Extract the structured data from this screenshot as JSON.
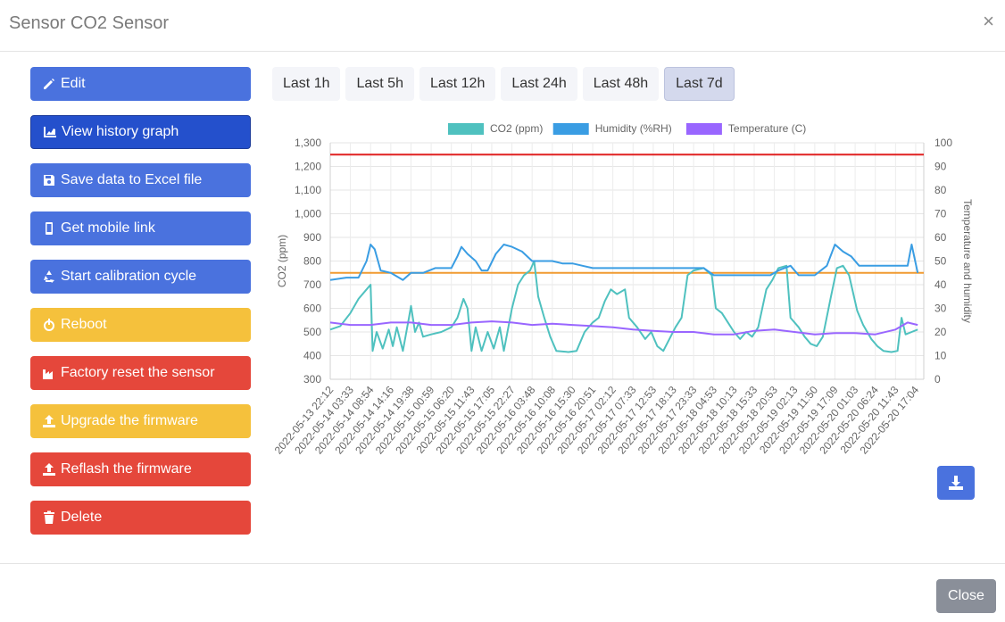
{
  "modal": {
    "title": "Sensor CO2 Sensor",
    "close_symbol": "×"
  },
  "actions": [
    {
      "label": "Edit",
      "icon": "pencil-icon",
      "color": "#4a72de",
      "name": "edit-button"
    },
    {
      "label": "View history graph",
      "icon": "chart-icon",
      "color": "#2450cc",
      "name": "view-history-graph-button",
      "active": true
    },
    {
      "label": "Save data to Excel file",
      "icon": "floppy-icon",
      "color": "#4a72de",
      "name": "save-excel-button"
    },
    {
      "label": "Get mobile link",
      "icon": "mobile-icon",
      "color": "#4a72de",
      "name": "get-mobile-link-button"
    },
    {
      "label": "Start calibration cycle",
      "icon": "recycle-icon",
      "color": "#4a72de",
      "name": "start-calibration-button"
    },
    {
      "label": "Reboot",
      "icon": "power-icon",
      "color": "#f5c13c",
      "name": "reboot-button"
    },
    {
      "label": "Factory reset the sensor",
      "icon": "factory-icon",
      "color": "#e5473b",
      "name": "factory-reset-button"
    },
    {
      "label": "Upgrade the firmware",
      "icon": "upload-icon",
      "color": "#f5c13c",
      "name": "upgrade-firmware-button"
    },
    {
      "label": "Reflash the firmware",
      "icon": "upload-icon",
      "color": "#e5473b",
      "name": "reflash-firmware-button"
    },
    {
      "label": "Delete",
      "icon": "trash-icon",
      "color": "#e5473b",
      "name": "delete-button"
    }
  ],
  "ranges": [
    {
      "label": "Last 1h"
    },
    {
      "label": "Last 5h"
    },
    {
      "label": "Last 12h"
    },
    {
      "label": "Last 24h"
    },
    {
      "label": "Last 48h"
    },
    {
      "label": "Last 7d",
      "active": true
    }
  ],
  "download_icon": "download-icon",
  "footer": {
    "close_label": "Close"
  },
  "chart_data": {
    "type": "line",
    "title": "",
    "legend": [
      {
        "name": "CO2 (ppm)",
        "color": "#4fc1bf"
      },
      {
        "name": "Humidity (%RH)",
        "color": "#3a9de3"
      },
      {
        "name": "Temperature (C)",
        "color": "#9966ff"
      }
    ],
    "legend_position": "top",
    "ylabel_left": "CO2 (ppm)",
    "ylabel_right": "Temperature and humidity",
    "ylim_left": [
      300,
      1300
    ],
    "ylim_right": [
      0,
      100
    ],
    "yticks_left": [
      "300",
      "400",
      "500",
      "600",
      "700",
      "800",
      "900",
      "1,000",
      "1,100",
      "1,200",
      "1,300"
    ],
    "yticks_right": [
      "0",
      "10",
      "20",
      "30",
      "40",
      "50",
      "60",
      "70",
      "80",
      "90",
      "100"
    ],
    "grid": true,
    "x_labels": [
      "2022-05-13 22:12",
      "2022-05-14 03:33",
      "2022-05-14 08:54",
      "2022-05-14 14:16",
      "2022-05-14 19:38",
      "2022-05-15 00:59",
      "2022-05-15 06:20",
      "2022-05-15 11:43",
      "2022-05-15 17:05",
      "2022-05-15 22:27",
      "2022-05-16 03:48",
      "2022-05-16 10:08",
      "2022-05-16 15:30",
      "2022-05-16 20:51",
      "2022-05-17 02:12",
      "2022-05-17 07:33",
      "2022-05-17 12:53",
      "2022-05-17 18:13",
      "2022-05-17 23:33",
      "2022-05-18 04:53",
      "2022-05-18 10:13",
      "2022-05-18 15:33",
      "2022-05-18 20:53",
      "2022-05-19 02:13",
      "2022-05-19 11:50",
      "2022-05-19 17:09",
      "2022-05-20 01:03",
      "2022-05-20 06:24",
      "2022-05-20 11:43",
      "2022-05-20 17:04"
    ],
    "thresholds_left": [
      {
        "value": 1250,
        "color": "#e02020"
      },
      {
        "value": 750,
        "color": "#f09a30"
      }
    ],
    "series": [
      {
        "name": "CO2 (ppm)",
        "axis": "left",
        "color": "#4fc1bf",
        "points": [
          [
            0,
            510
          ],
          [
            0.5,
            525
          ],
          [
            1,
            580
          ],
          [
            1.4,
            640
          ],
          [
            1.8,
            680
          ],
          [
            2,
            700
          ],
          [
            2.1,
            420
          ],
          [
            2.3,
            500
          ],
          [
            2.6,
            430
          ],
          [
            2.9,
            510
          ],
          [
            3.1,
            440
          ],
          [
            3.3,
            520
          ],
          [
            3.6,
            420
          ],
          [
            3.9,
            560
          ],
          [
            4,
            610
          ],
          [
            4.2,
            500
          ],
          [
            4.4,
            540
          ],
          [
            4.6,
            480
          ],
          [
            5,
            490
          ],
          [
            5.5,
            500
          ],
          [
            6,
            520
          ],
          [
            6.3,
            560
          ],
          [
            6.6,
            640
          ],
          [
            6.8,
            600
          ],
          [
            7,
            420
          ],
          [
            7.2,
            520
          ],
          [
            7.5,
            420
          ],
          [
            7.8,
            500
          ],
          [
            8.1,
            430
          ],
          [
            8.4,
            520
          ],
          [
            8.6,
            420
          ],
          [
            9,
            600
          ],
          [
            9.3,
            700
          ],
          [
            9.6,
            740
          ],
          [
            9.9,
            760
          ],
          [
            10.1,
            800
          ],
          [
            10.3,
            650
          ],
          [
            10.6,
            560
          ],
          [
            10.9,
            480
          ],
          [
            11.2,
            420
          ],
          [
            11.8,
            415
          ],
          [
            12.2,
            420
          ],
          [
            12.6,
            500
          ],
          [
            13,
            540
          ],
          [
            13.3,
            560
          ],
          [
            13.6,
            630
          ],
          [
            13.9,
            680
          ],
          [
            14.2,
            660
          ],
          [
            14.6,
            680
          ],
          [
            14.8,
            560
          ],
          [
            15.2,
            520
          ],
          [
            15.6,
            470
          ],
          [
            15.9,
            500
          ],
          [
            16.2,
            440
          ],
          [
            16.5,
            420
          ],
          [
            16.8,
            470
          ],
          [
            17.1,
            520
          ],
          [
            17.4,
            560
          ],
          [
            17.7,
            740
          ],
          [
            18.0,
            760
          ],
          [
            18.5,
            770
          ],
          [
            18.9,
            740
          ],
          [
            19.1,
            600
          ],
          [
            19.4,
            580
          ],
          [
            19.7,
            540
          ],
          [
            20,
            500
          ],
          [
            20.3,
            470
          ],
          [
            20.6,
            500
          ],
          [
            20.9,
            480
          ],
          [
            21.2,
            520
          ],
          [
            21.6,
            680
          ],
          [
            21.9,
            720
          ],
          [
            22.2,
            770
          ],
          [
            22.6,
            780
          ],
          [
            22.8,
            560
          ],
          [
            23.2,
            520
          ],
          [
            23.5,
            480
          ],
          [
            23.8,
            450
          ],
          [
            24.1,
            440
          ],
          [
            24.4,
            480
          ],
          [
            24.8,
            650
          ],
          [
            25.1,
            770
          ],
          [
            25.4,
            780
          ],
          [
            25.7,
            740
          ],
          [
            26.1,
            590
          ],
          [
            26.4,
            530
          ],
          [
            26.8,
            470
          ],
          [
            27.1,
            440
          ],
          [
            27.4,
            420
          ],
          [
            27.8,
            415
          ],
          [
            28.1,
            420
          ],
          [
            28.3,
            560
          ],
          [
            28.5,
            490
          ],
          [
            28.8,
            500
          ],
          [
            29.1,
            510
          ]
        ]
      },
      {
        "name": "Humidity (%RH)",
        "axis": "right",
        "color": "#3a9de3",
        "points": [
          [
            0,
            42
          ],
          [
            0.8,
            43
          ],
          [
            1.4,
            43
          ],
          [
            1.8,
            50
          ],
          [
            2,
            57
          ],
          [
            2.2,
            55
          ],
          [
            2.5,
            46
          ],
          [
            3.0,
            45
          ],
          [
            3.6,
            42
          ],
          [
            4,
            45
          ],
          [
            4.6,
            45
          ],
          [
            5.2,
            47
          ],
          [
            6,
            47
          ],
          [
            6.3,
            52
          ],
          [
            6.5,
            56
          ],
          [
            6.8,
            53
          ],
          [
            7.2,
            50
          ],
          [
            7.5,
            46
          ],
          [
            7.8,
            46
          ],
          [
            8.2,
            53
          ],
          [
            8.6,
            57
          ],
          [
            9,
            56
          ],
          [
            9.5,
            54
          ],
          [
            10,
            50
          ],
          [
            10.5,
            50
          ],
          [
            11,
            50
          ],
          [
            11.5,
            49
          ],
          [
            12,
            49
          ],
          [
            12.5,
            48
          ],
          [
            13,
            47
          ],
          [
            14,
            47
          ],
          [
            15,
            47
          ],
          [
            16,
            47
          ],
          [
            17,
            47
          ],
          [
            18,
            47
          ],
          [
            18.5,
            47
          ],
          [
            19,
            44
          ],
          [
            20,
            44
          ],
          [
            21,
            44
          ],
          [
            21.8,
            44
          ],
          [
            22.2,
            46
          ],
          [
            22.8,
            48
          ],
          [
            23.2,
            44
          ],
          [
            24,
            44
          ],
          [
            24.6,
            48
          ],
          [
            25,
            57
          ],
          [
            25.4,
            54
          ],
          [
            25.8,
            52
          ],
          [
            26.2,
            48
          ],
          [
            26.6,
            48
          ],
          [
            27.2,
            48
          ],
          [
            28,
            48
          ],
          [
            28.6,
            48
          ],
          [
            28.8,
            57
          ],
          [
            29.1,
            45
          ]
        ]
      },
      {
        "name": "Temperature (C)",
        "axis": "right",
        "color": "#9966ff",
        "points": [
          [
            0,
            24
          ],
          [
            1,
            23
          ],
          [
            2,
            23
          ],
          [
            3,
            24
          ],
          [
            4,
            24
          ],
          [
            5,
            23
          ],
          [
            6,
            23
          ],
          [
            7,
            24
          ],
          [
            8,
            24.5
          ],
          [
            9,
            24
          ],
          [
            10,
            23
          ],
          [
            11,
            23.5
          ],
          [
            12,
            23
          ],
          [
            13,
            22.5
          ],
          [
            14,
            22
          ],
          [
            15,
            21
          ],
          [
            16,
            20.5
          ],
          [
            17,
            20
          ],
          [
            18,
            20
          ],
          [
            19,
            19
          ],
          [
            20,
            19
          ],
          [
            21,
            20.5
          ],
          [
            22,
            21
          ],
          [
            23,
            20
          ],
          [
            24,
            19
          ],
          [
            25,
            19.5
          ],
          [
            26,
            19.5
          ],
          [
            27,
            19
          ],
          [
            28,
            21
          ],
          [
            28.6,
            24
          ],
          [
            29.1,
            23
          ]
        ]
      }
    ]
  }
}
